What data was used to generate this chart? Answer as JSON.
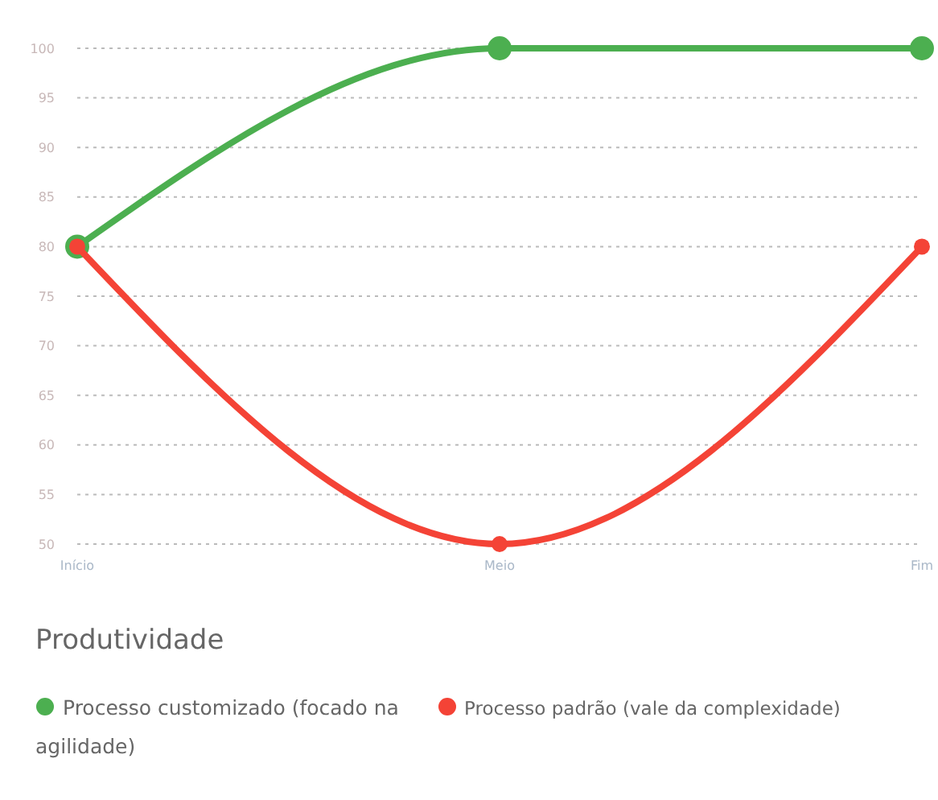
{
  "chart_data": {
    "type": "line",
    "categories": [
      "Início",
      "Meio",
      "Fim"
    ],
    "series": [
      {
        "name": "Processo customizado (focado na agilidade)",
        "color": "#4caf50",
        "values": [
          80,
          100,
          100
        ]
      },
      {
        "name": "Processo padrão (vale da complexidade)",
        "color": "#f44336",
        "values": [
          80,
          50,
          80
        ]
      }
    ],
    "ylim": [
      50,
      100
    ],
    "yticks": [
      50,
      55,
      60,
      65,
      70,
      75,
      80,
      85,
      90,
      95,
      100
    ],
    "grid": "y",
    "legend": "bottom",
    "legend_title": "Produtividade",
    "marker": "circle",
    "line_style": "solid"
  }
}
